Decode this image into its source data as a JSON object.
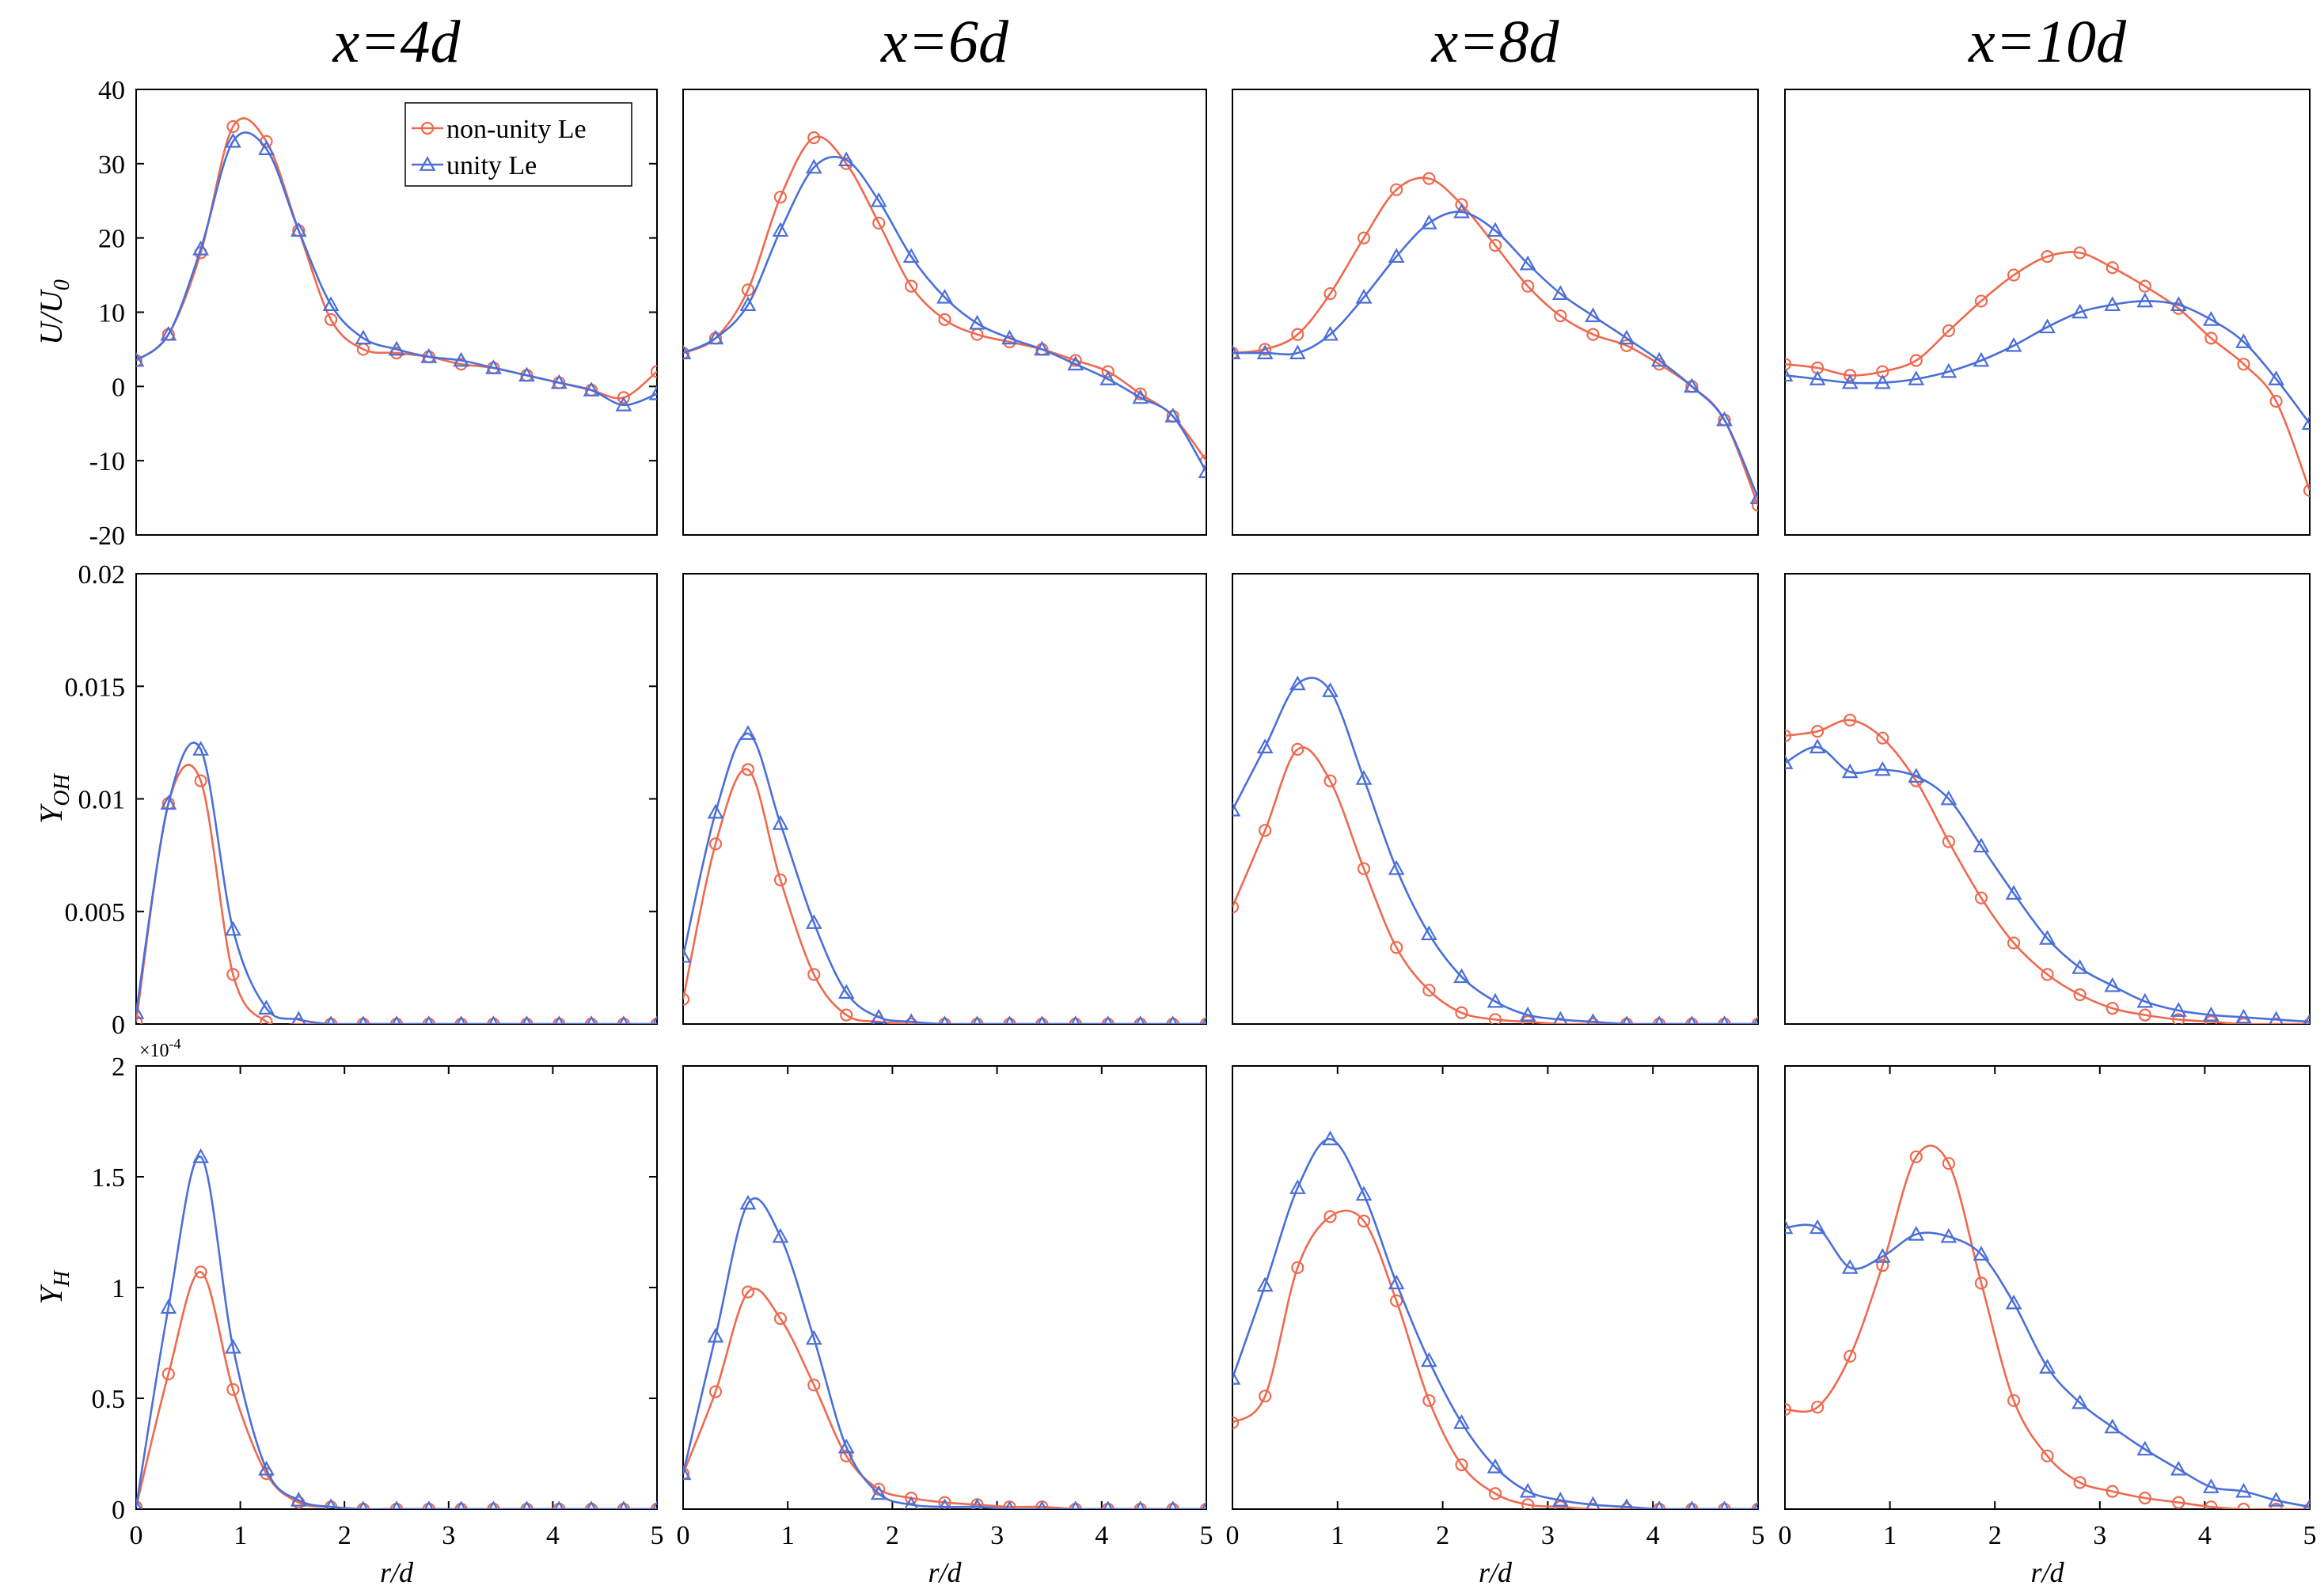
{
  "figure": {
    "column_titles": [
      "x=4d",
      "x=6d",
      "x=8d",
      "x=10d"
    ],
    "row_ylabels": [
      {
        "base": "U/U",
        "sub": "0"
      },
      {
        "base": "Y",
        "sub": "OH"
      },
      {
        "base": "Y",
        "sub": "H"
      }
    ],
    "xlabel": "r/d",
    "exponent_label": {
      "base": "×10",
      "sup": "-4"
    },
    "legend": [
      {
        "label": "non-unity Le",
        "marker": "circle",
        "color": "#EE6A4F"
      },
      {
        "label": "unity Le",
        "marker": "triangle",
        "color": "#4A6FD8"
      }
    ],
    "colors": {
      "non_unity": "#EE6A4F",
      "unity": "#4A6FD8",
      "axis": "#000000"
    }
  },
  "chart_data": [
    {
      "type": "line",
      "panel": "U/U0 at x=4d",
      "title": "x=4d",
      "ylabel": "U/U0",
      "xlabel": "",
      "xlim": [
        0,
        5
      ],
      "ylim": [
        -20,
        40
      ],
      "xticks": [],
      "yticks": [
        -20,
        -10,
        0,
        10,
        20,
        30,
        40
      ],
      "legend": "top-right",
      "x": [
        0,
        0.31,
        0.62,
        0.93,
        1.25,
        1.56,
        1.87,
        2.18,
        2.5,
        2.81,
        3.12,
        3.43,
        3.75,
        4.06,
        4.37,
        4.68,
        5.0
      ],
      "series": [
        {
          "name": "non-unity Le",
          "values": [
            3.5,
            7,
            18,
            35,
            33,
            21,
            9,
            5,
            4.5,
            4,
            3,
            2.5,
            1.5,
            0.5,
            -0.5,
            -1.5,
            2
          ]
        },
        {
          "name": "unity Le",
          "values": [
            3.5,
            7,
            18.5,
            33,
            32,
            21,
            11,
            6.5,
            5,
            4,
            3.5,
            2.5,
            1.5,
            0.5,
            -0.5,
            -2.5,
            -1
          ]
        }
      ]
    },
    {
      "type": "line",
      "panel": "U/U0 at x=6d",
      "title": "x=6d",
      "ylabel": "",
      "xlabel": "",
      "xlim": [
        0,
        5
      ],
      "ylim": [
        -20,
        40
      ],
      "xticks": [],
      "yticks": [],
      "x": [
        0,
        0.31,
        0.62,
        0.93,
        1.25,
        1.56,
        1.87,
        2.18,
        2.5,
        2.81,
        3.12,
        3.43,
        3.75,
        4.06,
        4.37,
        4.68,
        5.0
      ],
      "series": [
        {
          "name": "non-unity Le",
          "values": [
            4.5,
            6.5,
            13,
            25.5,
            33.5,
            30,
            22,
            13.5,
            9,
            7,
            6,
            5,
            3.5,
            2,
            -1,
            -4,
            -10
          ]
        },
        {
          "name": "unity Le",
          "values": [
            4.5,
            6.5,
            11,
            21,
            29.5,
            30.5,
            25,
            17.5,
            12,
            8.5,
            6.5,
            5,
            3,
            1,
            -1.5,
            -4,
            -11.5
          ]
        }
      ]
    },
    {
      "type": "line",
      "panel": "U/U0 at x=8d",
      "title": "x=8d",
      "ylabel": "",
      "xlabel": "",
      "xlim": [
        0,
        5
      ],
      "ylim": [
        -20,
        40
      ],
      "xticks": [],
      "yticks": [],
      "x": [
        0,
        0.31,
        0.62,
        0.93,
        1.25,
        1.56,
        1.87,
        2.18,
        2.5,
        2.81,
        3.12,
        3.43,
        3.75,
        4.06,
        4.37,
        4.68,
        5.0
      ],
      "series": [
        {
          "name": "non-unity Le",
          "values": [
            4.5,
            5,
            7,
            12.5,
            20,
            26.5,
            28,
            24.5,
            19,
            13.5,
            9.5,
            7,
            5.5,
            3,
            0,
            -4.5,
            -16
          ]
        },
        {
          "name": "unity Le",
          "values": [
            4.5,
            4.5,
            4.5,
            7,
            12,
            17.5,
            22,
            23.5,
            21,
            16.5,
            12.5,
            9.5,
            6.5,
            3.5,
            0,
            -4.5,
            -15
          ]
        }
      ]
    },
    {
      "type": "line",
      "panel": "U/U0 at x=10d",
      "title": "x=10d",
      "ylabel": "",
      "xlabel": "",
      "xlim": [
        0,
        5
      ],
      "ylim": [
        -20,
        40
      ],
      "xticks": [],
      "yticks": [],
      "x": [
        0,
        0.31,
        0.62,
        0.93,
        1.25,
        1.56,
        1.87,
        2.18,
        2.5,
        2.81,
        3.12,
        3.43,
        3.75,
        4.06,
        4.37,
        4.68,
        5.0
      ],
      "series": [
        {
          "name": "non-unity Le",
          "values": [
            3,
            2.5,
            1.5,
            2,
            3.5,
            7.5,
            11.5,
            15,
            17.5,
            18,
            16,
            13.5,
            10.5,
            6.5,
            3,
            -2,
            -14
          ]
        },
        {
          "name": "unity Le",
          "values": [
            1.5,
            1,
            0.5,
            0.5,
            1,
            2,
            3.5,
            5.5,
            8,
            10,
            11,
            11.5,
            11,
            9,
            6,
            1,
            -5
          ]
        }
      ]
    },
    {
      "type": "line",
      "panel": "Y_OH at x=4d",
      "ylabel": "Y_OH",
      "xlabel": "",
      "xlim": [
        0,
        5
      ],
      "ylim": [
        0,
        0.02
      ],
      "xticks": [],
      "yticks": [
        0,
        0.005,
        0.01,
        0.015,
        0.02
      ],
      "x": [
        0,
        0.31,
        0.62,
        0.93,
        1.25,
        1.56,
        1.87,
        2.18,
        2.5,
        2.81,
        3.12,
        3.43,
        3.75,
        4.06,
        4.37,
        4.68,
        5.0
      ],
      "series": [
        {
          "name": "non-unity Le",
          "values": [
            0.0001,
            0.0098,
            0.0108,
            0.0022,
            0.0001,
            0,
            0,
            0,
            0,
            0,
            0,
            0,
            0,
            0,
            0,
            0,
            0
          ]
        },
        {
          "name": "unity Le",
          "values": [
            0.0005,
            0.0098,
            0.0122,
            0.0042,
            0.0007,
            0.0002,
            0,
            0,
            0,
            0,
            0,
            0,
            0,
            0,
            0,
            0,
            0
          ]
        }
      ]
    },
    {
      "type": "line",
      "panel": "Y_OH at x=6d",
      "ylabel": "",
      "xlabel": "",
      "xlim": [
        0,
        5
      ],
      "ylim": [
        0,
        0.02
      ],
      "xticks": [],
      "yticks": [],
      "x": [
        0,
        0.31,
        0.62,
        0.93,
        1.25,
        1.56,
        1.87,
        2.18,
        2.5,
        2.81,
        3.12,
        3.43,
        3.75,
        4.06,
        4.37,
        4.68,
        5.0
      ],
      "series": [
        {
          "name": "non-unity Le",
          "values": [
            0.0011,
            0.008,
            0.0113,
            0.0064,
            0.0022,
            0.0004,
            0.0001,
            0,
            0,
            0,
            0,
            0,
            0,
            0,
            0,
            0,
            0
          ]
        },
        {
          "name": "unity Le",
          "values": [
            0.003,
            0.0094,
            0.0129,
            0.0089,
            0.0045,
            0.0014,
            0.0003,
            0.0001,
            0,
            0,
            0,
            0,
            0,
            0,
            0,
            0,
            0
          ]
        }
      ]
    },
    {
      "type": "line",
      "panel": "Y_OH at x=8d",
      "ylabel": "",
      "xlabel": "",
      "xlim": [
        0,
        5
      ],
      "ylim": [
        0,
        0.02
      ],
      "xticks": [],
      "yticks": [],
      "x": [
        0,
        0.31,
        0.62,
        0.93,
        1.25,
        1.56,
        1.87,
        2.18,
        2.5,
        2.81,
        3.12,
        3.43,
        3.75,
        4.06,
        4.37,
        4.68,
        5.0
      ],
      "series": [
        {
          "name": "non-unity Le",
          "values": [
            0.0052,
            0.0086,
            0.0122,
            0.0108,
            0.0069,
            0.0034,
            0.0015,
            0.0005,
            0.0002,
            0.0001,
            0,
            0,
            0,
            0,
            0,
            0,
            0
          ]
        },
        {
          "name": "unity Le",
          "values": [
            0.0095,
            0.0123,
            0.0151,
            0.0148,
            0.0109,
            0.0069,
            0.004,
            0.0021,
            0.001,
            0.0004,
            0.0002,
            0.0001,
            0,
            0,
            0,
            0,
            0
          ]
        }
      ]
    },
    {
      "type": "line",
      "panel": "Y_OH at x=10d",
      "ylabel": "",
      "xlabel": "",
      "xlim": [
        0,
        5
      ],
      "ylim": [
        0,
        0.02
      ],
      "xticks": [],
      "yticks": [],
      "x": [
        0,
        0.31,
        0.62,
        0.93,
        1.25,
        1.56,
        1.87,
        2.18,
        2.5,
        2.81,
        3.12,
        3.43,
        3.75,
        4.06,
        4.37,
        4.68,
        5.0
      ],
      "series": [
        {
          "name": "non-unity Le",
          "values": [
            0.0128,
            0.013,
            0.0135,
            0.0127,
            0.0108,
            0.0081,
            0.0056,
            0.0036,
            0.0022,
            0.0013,
            0.0007,
            0.0004,
            0.0002,
            0.0001,
            0,
            0,
            0
          ]
        },
        {
          "name": "unity Le",
          "values": [
            0.0116,
            0.0123,
            0.0112,
            0.0113,
            0.011,
            0.01,
            0.0079,
            0.0058,
            0.0038,
            0.0025,
            0.0017,
            0.001,
            0.0006,
            0.0004,
            0.0003,
            0.0002,
            0.0001
          ]
        }
      ]
    },
    {
      "type": "line",
      "panel": "Y_H at x=4d",
      "ylabel": "Y_H",
      "xlabel": "r/d",
      "xlim": [
        0,
        5
      ],
      "ylim": [
        0,
        2
      ],
      "y_exponent": "×10^-4",
      "xticks": [
        0,
        1,
        2,
        3,
        4,
        5
      ],
      "yticks": [
        0,
        0.5,
        1.0,
        1.5,
        2
      ],
      "x": [
        0,
        0.31,
        0.62,
        0.93,
        1.25,
        1.56,
        1.87,
        2.18,
        2.5,
        2.81,
        3.12,
        3.43,
        3.75,
        4.06,
        4.37,
        4.68,
        5.0
      ],
      "series": [
        {
          "name": "non-unity Le",
          "values": [
            0.01,
            0.61,
            1.07,
            0.54,
            0.16,
            0.03,
            0.01,
            0,
            0,
            0,
            0,
            0,
            0,
            0,
            0,
            0,
            0
          ]
        },
        {
          "name": "unity Le",
          "values": [
            0.01,
            0.91,
            1.59,
            0.73,
            0.18,
            0.04,
            0.01,
            0,
            0,
            0,
            0,
            0,
            0,
            0,
            0,
            0,
            0
          ]
        }
      ]
    },
    {
      "type": "line",
      "panel": "Y_H at x=6d",
      "ylabel": "",
      "xlabel": "r/d",
      "xlim": [
        0,
        5
      ],
      "ylim": [
        0,
        2
      ],
      "xticks": [
        0,
        1,
        2,
        3,
        4,
        5
      ],
      "yticks": [],
      "x": [
        0,
        0.31,
        0.62,
        0.93,
        1.25,
        1.56,
        1.87,
        2.18,
        2.5,
        2.81,
        3.12,
        3.43,
        3.75,
        4.06,
        4.37,
        4.68,
        5.0
      ],
      "series": [
        {
          "name": "non-unity Le",
          "values": [
            0.16,
            0.53,
            0.98,
            0.86,
            0.56,
            0.24,
            0.09,
            0.05,
            0.03,
            0.02,
            0.01,
            0.01,
            0,
            0,
            0,
            0,
            0
          ]
        },
        {
          "name": "unity Le",
          "values": [
            0.16,
            0.78,
            1.38,
            1.23,
            0.77,
            0.28,
            0.07,
            0.02,
            0.01,
            0.01,
            0,
            0,
            0,
            0,
            0,
            0,
            0
          ]
        }
      ]
    },
    {
      "type": "line",
      "panel": "Y_H at x=8d",
      "ylabel": "",
      "xlabel": "r/d",
      "xlim": [
        0,
        5
      ],
      "ylim": [
        0,
        2
      ],
      "xticks": [
        0,
        1,
        2,
        3,
        4,
        5
      ],
      "yticks": [],
      "x": [
        0,
        0.31,
        0.62,
        0.93,
        1.25,
        1.56,
        1.87,
        2.18,
        2.5,
        2.81,
        3.12,
        3.43,
        3.75,
        4.06,
        4.37,
        4.68,
        5.0
      ],
      "series": [
        {
          "name": "non-unity Le",
          "values": [
            0.39,
            0.51,
            1.09,
            1.32,
            1.3,
            0.94,
            0.49,
            0.2,
            0.07,
            0.02,
            0.01,
            0,
            0,
            0,
            0,
            0,
            0
          ]
        },
        {
          "name": "unity Le",
          "values": [
            0.59,
            1.01,
            1.45,
            1.67,
            1.42,
            1.02,
            0.67,
            0.39,
            0.19,
            0.08,
            0.04,
            0.02,
            0.01,
            0,
            0,
            0,
            0
          ]
        }
      ]
    },
    {
      "type": "line",
      "panel": "Y_H at x=10d",
      "ylabel": "",
      "xlabel": "r/d",
      "xlim": [
        0,
        5
      ],
      "ylim": [
        0,
        2
      ],
      "xticks": [
        0,
        1,
        2,
        3,
        4,
        5
      ],
      "yticks": [],
      "x": [
        0,
        0.31,
        0.62,
        0.93,
        1.25,
        1.56,
        1.87,
        2.18,
        2.5,
        2.81,
        3.12,
        3.43,
        3.75,
        4.06,
        4.37,
        4.68,
        5.0
      ],
      "series": [
        {
          "name": "non-unity Le",
          "values": [
            0.45,
            0.46,
            0.69,
            1.1,
            1.59,
            1.56,
            1.02,
            0.49,
            0.24,
            0.12,
            0.08,
            0.05,
            0.03,
            0.01,
            0,
            0,
            0
          ]
        },
        {
          "name": "unity Le",
          "values": [
            1.27,
            1.27,
            1.09,
            1.14,
            1.24,
            1.23,
            1.15,
            0.93,
            0.64,
            0.48,
            0.37,
            0.27,
            0.18,
            0.1,
            0.08,
            0.04,
            0.01
          ]
        }
      ]
    }
  ]
}
